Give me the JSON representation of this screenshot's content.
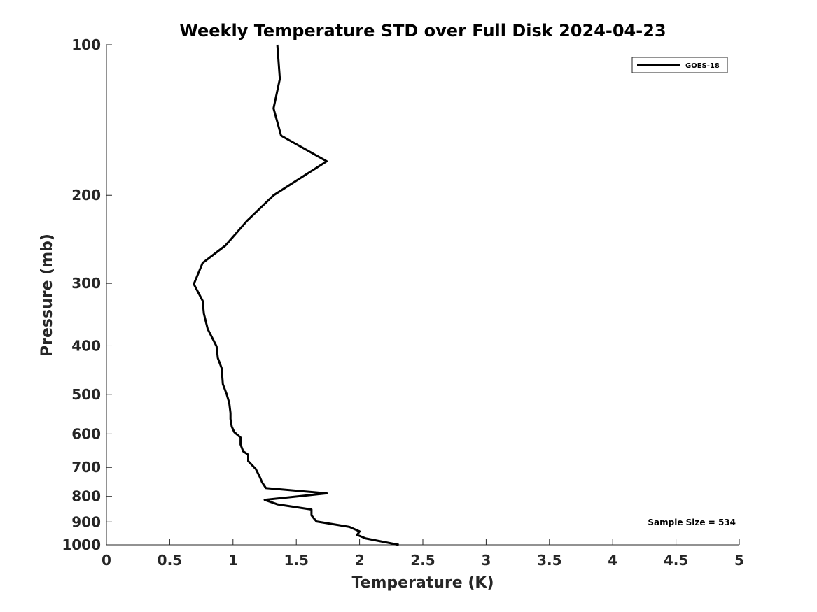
{
  "chart_data": {
    "type": "line",
    "title": "Weekly Temperature STD over Full Disk 2024-04-23",
    "xlabel": "Temperature (K)",
    "ylabel": "Pressure (mb)",
    "xlim": [
      0,
      5
    ],
    "ylim": [
      100,
      1000
    ],
    "yscale": "log",
    "yreverse": true,
    "x_ticks": [
      0,
      0.5,
      1,
      1.5,
      2,
      2.5,
      3,
      3.5,
      4,
      4.5,
      5
    ],
    "x_tick_labels": [
      "0",
      "0.5",
      "1",
      "1.5",
      "2",
      "2.5",
      "3",
      "3.5",
      "4",
      "4.5",
      "5"
    ],
    "y_ticks": [
      100,
      200,
      300,
      400,
      500,
      600,
      700,
      800,
      900,
      1000
    ],
    "y_tick_labels": [
      "100",
      "200",
      "300",
      "400",
      "500",
      "600",
      "700",
      "800",
      "900",
      "1000"
    ],
    "grid": false,
    "legend_position": "top-right",
    "series": [
      {
        "name": "GOES-18",
        "color": "#000000",
        "x": [
          1.35,
          1.37,
          1.32,
          1.38,
          1.74,
          1.32,
          1.11,
          0.94,
          0.76,
          0.69,
          0.76,
          0.77,
          0.8,
          0.87,
          0.88,
          0.91,
          0.92,
          0.95,
          0.97,
          0.98,
          0.98,
          0.99,
          1.01,
          1.06,
          1.06,
          1.08,
          1.12,
          1.12,
          1.18,
          1.21,
          1.23,
          1.26,
          1.74,
          1.25,
          1.35,
          1.62,
          1.62,
          1.64,
          1.66,
          1.92,
          2.0,
          1.98,
          2.05,
          2.31
        ],
        "y": [
          100,
          117,
          134,
          152,
          171,
          200,
          225,
          252,
          273,
          301,
          325,
          345,
          370,
          401,
          423,
          443,
          477,
          500,
          520,
          545,
          560,
          580,
          595,
          610,
          630,
          650,
          660,
          680,
          705,
          730,
          750,
          770,
          789,
          813,
          830,
          850,
          873,
          886,
          898,
          921,
          940,
          955,
          971,
          1000
        ]
      }
    ],
    "annotations": [
      "Sample Size = 534"
    ]
  }
}
